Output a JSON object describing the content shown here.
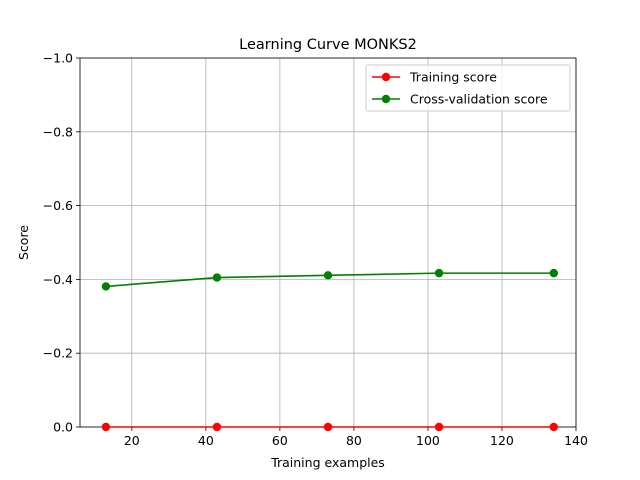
{
  "chart_data": {
    "type": "line",
    "title": "Learning Curve MONKS2",
    "xlabel": "Training examples",
    "ylabel": "Score",
    "xlim": [
      6.0,
      140
    ],
    "ylim": [
      0.0,
      -1.0
    ],
    "y_inverted": true,
    "grid": true,
    "legend_position": "upper right",
    "x_ticks": [
      20,
      40,
      60,
      80,
      100,
      120,
      140
    ],
    "x_tick_labels": [
      "20",
      "40",
      "60",
      "80",
      "100",
      "120",
      "140"
    ],
    "y_ticks": [
      0.0,
      -0.2,
      -0.4,
      -0.6,
      -0.8,
      -1.0
    ],
    "y_tick_labels": [
      "0.0",
      "−0.2",
      "−0.4",
      "−0.6",
      "−0.8",
      "−1.0"
    ],
    "x": [
      13,
      43,
      73,
      103,
      134
    ],
    "series": [
      {
        "name": "Training score",
        "color": "#ff0000",
        "marker": "circle",
        "values": [
          0.0,
          0.0,
          0.0,
          0.0,
          0.0
        ]
      },
      {
        "name": "Cross-validation score",
        "color": "#008000",
        "marker": "circle",
        "values": [
          -0.381,
          -0.405,
          -0.411,
          -0.417,
          -0.417
        ]
      }
    ]
  }
}
